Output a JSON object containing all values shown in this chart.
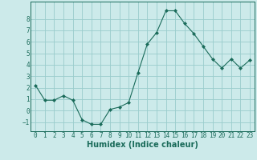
{
  "x": [
    0,
    1,
    2,
    3,
    4,
    5,
    6,
    7,
    8,
    9,
    10,
    11,
    12,
    13,
    14,
    15,
    16,
    17,
    18,
    19,
    20,
    21,
    22,
    23
  ],
  "y": [
    2.2,
    0.9,
    0.9,
    1.3,
    0.9,
    -0.8,
    -1.2,
    -1.2,
    0.1,
    0.3,
    0.7,
    3.3,
    5.8,
    6.8,
    8.7,
    8.7,
    7.6,
    6.7,
    5.6,
    4.5,
    3.7,
    4.5,
    3.7,
    4.4
  ],
  "line_color": "#1a6b5a",
  "marker": "D",
  "marker_size": 2.0,
  "bg_color": "#cceaea",
  "grid_color": "#99cccc",
  "xlabel": "Humidex (Indice chaleur)",
  "xlim": [
    -0.5,
    23.5
  ],
  "ylim": [
    -1.8,
    9.5
  ],
  "yticks": [
    -1,
    0,
    1,
    2,
    3,
    4,
    5,
    6,
    7,
    8
  ],
  "xticks": [
    0,
    1,
    2,
    3,
    4,
    5,
    6,
    7,
    8,
    9,
    10,
    11,
    12,
    13,
    14,
    15,
    16,
    17,
    18,
    19,
    20,
    21,
    22,
    23
  ],
  "tick_fontsize": 5.5,
  "xlabel_fontsize": 7.0
}
